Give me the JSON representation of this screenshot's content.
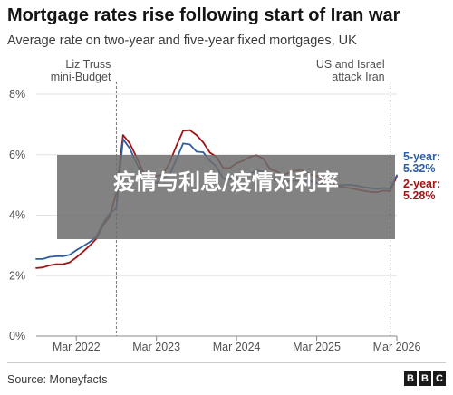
{
  "header": {
    "title": "Mortgage rates rise following start of Iran war",
    "subtitle": "Average rate on two-year and five-year fixed mortgages, UK"
  },
  "overlay_text": "疫情与利息/疫情对利率",
  "footer": {
    "source": "Source: Moneyfacts",
    "logo_letters": [
      "B",
      "B",
      "C"
    ]
  },
  "colors": {
    "two_year": "#a01414",
    "five_year": "#2e5e9e",
    "grid": "#e2e2e2"
  },
  "chart_data": {
    "type": "line",
    "title": "Mortgage rates rise following start of Iran war",
    "subtitle": "Average rate on two-year and five-year fixed mortgages, UK",
    "xlabel": "",
    "ylabel": "",
    "x_ticks": [
      "Mar 2022",
      "Mar 2023",
      "Mar 2024",
      "Mar 2025",
      "Mar 2026"
    ],
    "x_tick_dates": [
      "2022-03",
      "2023-03",
      "2024-03",
      "2025-03",
      "2026-03"
    ],
    "y_ticks": [
      "0%",
      "2%",
      "4%",
      "6%",
      "8%"
    ],
    "ylim": [
      0,
      8
    ],
    "xlim": [
      "2021-09",
      "2026-03"
    ],
    "grid": true,
    "annotations": [
      {
        "date": "2022-09",
        "label_lines": [
          "Liz Truss",
          "mini-Budget"
        ]
      },
      {
        "date": "2026-02",
        "label_lines": [
          "US and Israel",
          "attack Iran"
        ]
      }
    ],
    "end_labels": [
      {
        "series": "5-year",
        "label": "5-year:",
        "value_label": "5.32%"
      },
      {
        "series": "2-year",
        "label": "2-year:",
        "value_label": "5.28%"
      }
    ],
    "series": [
      {
        "name": "5-year",
        "color": "#2e5e9e",
        "points": [
          [
            "2021-09",
            2.55
          ],
          [
            "2021-10",
            2.55
          ],
          [
            "2021-11",
            2.62
          ],
          [
            "2021-12",
            2.64
          ],
          [
            "2022-01",
            2.64
          ],
          [
            "2022-02",
            2.69
          ],
          [
            "2022-03",
            2.84
          ],
          [
            "2022-04",
            2.97
          ],
          [
            "2022-05",
            3.11
          ],
          [
            "2022-06",
            3.29
          ],
          [
            "2022-07",
            3.72
          ],
          [
            "2022-08",
            4.05
          ],
          [
            "2022-09",
            4.23
          ],
          [
            "2022-10",
            6.51
          ],
          [
            "2022-11",
            6.21
          ],
          [
            "2022-12",
            5.72
          ],
          [
            "2023-01",
            5.32
          ],
          [
            "2023-02",
            5.07
          ],
          [
            "2023-03",
            5.07
          ],
          [
            "2023-04",
            5.2
          ],
          [
            "2023-05",
            5.36
          ],
          [
            "2023-06",
            5.85
          ],
          [
            "2023-07",
            6.37
          ],
          [
            "2023-08",
            6.34
          ],
          [
            "2023-09",
            6.1
          ],
          [
            "2023-10",
            6.08
          ],
          [
            "2023-11",
            5.8
          ],
          [
            "2023-12",
            5.6
          ],
          [
            "2024-01",
            5.21
          ],
          [
            "2024-02",
            5.18
          ],
          [
            "2024-03",
            5.34
          ],
          [
            "2024-04",
            5.3
          ],
          [
            "2024-05",
            5.37
          ],
          [
            "2024-06",
            5.47
          ],
          [
            "2024-07",
            5.45
          ],
          [
            "2024-08",
            5.21
          ],
          [
            "2024-09",
            5.12
          ],
          [
            "2024-10",
            5.09
          ],
          [
            "2024-11",
            5.13
          ],
          [
            "2024-12",
            5.14
          ],
          [
            "2025-01",
            5.14
          ],
          [
            "2025-02",
            5.13
          ],
          [
            "2025-03",
            5.07
          ],
          [
            "2025-04",
            5.01
          ],
          [
            "2025-05",
            5.0
          ],
          [
            "2025-06",
            4.98
          ],
          [
            "2025-07",
            5.0
          ],
          [
            "2025-08",
            5.0
          ],
          [
            "2025-09",
            4.98
          ],
          [
            "2025-10",
            4.93
          ],
          [
            "2025-11",
            4.9
          ],
          [
            "2025-12",
            4.87
          ],
          [
            "2026-01",
            4.9
          ],
          [
            "2026-02",
            4.88
          ],
          [
            "2026-03",
            5.32
          ]
        ]
      },
      {
        "name": "2-year",
        "color": "#a01414",
        "points": [
          [
            "2021-09",
            2.25
          ],
          [
            "2021-10",
            2.27
          ],
          [
            "2021-11",
            2.34
          ],
          [
            "2021-12",
            2.38
          ],
          [
            "2022-01",
            2.38
          ],
          [
            "2022-02",
            2.44
          ],
          [
            "2022-03",
            2.6
          ],
          [
            "2022-04",
            2.79
          ],
          [
            "2022-05",
            2.99
          ],
          [
            "2022-06",
            3.22
          ],
          [
            "2022-07",
            3.66
          ],
          [
            "2022-08",
            3.95
          ],
          [
            "2022-09",
            4.74
          ],
          [
            "2022-10",
            6.65
          ],
          [
            "2022-11",
            6.38
          ],
          [
            "2022-12",
            5.92
          ],
          [
            "2023-01",
            5.44
          ],
          [
            "2023-02",
            5.31
          ],
          [
            "2023-03",
            5.29
          ],
          [
            "2023-04",
            5.34
          ],
          [
            "2023-05",
            5.75
          ],
          [
            "2023-06",
            6.3
          ],
          [
            "2023-07",
            6.79
          ],
          [
            "2023-08",
            6.81
          ],
          [
            "2023-09",
            6.65
          ],
          [
            "2023-10",
            6.41
          ],
          [
            "2023-11",
            6.07
          ],
          [
            "2023-12",
            5.93
          ],
          [
            "2024-01",
            5.56
          ],
          [
            "2024-02",
            5.56
          ],
          [
            "2024-03",
            5.72
          ],
          [
            "2024-04",
            5.8
          ],
          [
            "2024-05",
            5.93
          ],
          [
            "2024-06",
            5.98
          ],
          [
            "2024-07",
            5.87
          ],
          [
            "2024-08",
            5.53
          ],
          [
            "2024-09",
            5.45
          ],
          [
            "2024-10",
            5.32
          ],
          [
            "2024-11",
            5.42
          ],
          [
            "2024-12",
            5.48
          ],
          [
            "2025-01",
            5.47
          ],
          [
            "2025-02",
            5.35
          ],
          [
            "2025-03",
            5.29
          ],
          [
            "2025-04",
            5.16
          ],
          [
            "2025-05",
            5.1
          ],
          [
            "2025-06",
            4.97
          ],
          [
            "2025-07",
            4.93
          ],
          [
            "2025-08",
            4.9
          ],
          [
            "2025-09",
            4.85
          ],
          [
            "2025-10",
            4.81
          ],
          [
            "2025-11",
            4.77
          ],
          [
            "2025-12",
            4.76
          ],
          [
            "2026-01",
            4.81
          ],
          [
            "2026-02",
            4.8
          ],
          [
            "2026-03",
            5.28
          ]
        ]
      }
    ]
  }
}
